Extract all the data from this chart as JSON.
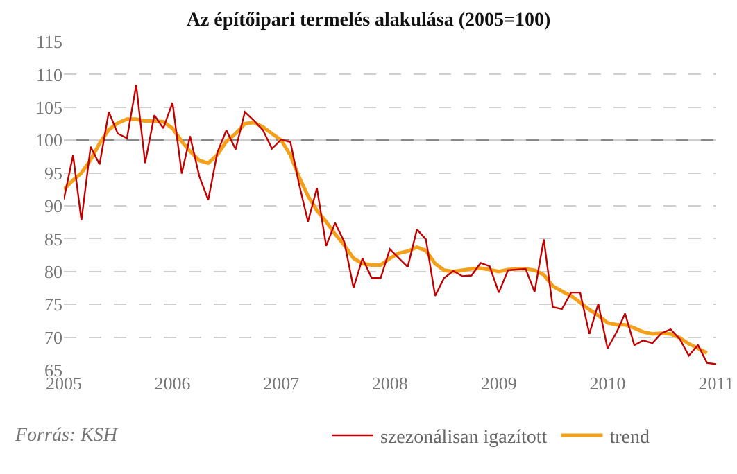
{
  "chart_data": {
    "type": "line",
    "title": "Az építőipari termelés alakulása (2005=100)",
    "x": [
      "2005-01",
      "2005-02",
      "2005-03",
      "2005-04",
      "2005-05",
      "2005-06",
      "2005-07",
      "2005-08",
      "2005-09",
      "2005-10",
      "2005-11",
      "2005-12",
      "2006-01",
      "2006-02",
      "2006-03",
      "2006-04",
      "2006-05",
      "2006-06",
      "2006-07",
      "2006-08",
      "2006-09",
      "2006-10",
      "2006-11",
      "2006-12",
      "2007-01",
      "2007-02",
      "2007-03",
      "2007-04",
      "2007-05",
      "2007-06",
      "2007-07",
      "2007-08",
      "2007-09",
      "2007-10",
      "2007-11",
      "2007-12",
      "2008-01",
      "2008-02",
      "2008-03",
      "2008-04",
      "2008-05",
      "2008-06",
      "2008-07",
      "2008-08",
      "2008-09",
      "2008-10",
      "2008-11",
      "2008-12",
      "2009-01",
      "2009-02",
      "2009-03",
      "2009-04",
      "2009-05",
      "2009-06",
      "2009-07",
      "2009-08",
      "2009-09",
      "2009-10",
      "2009-11",
      "2009-12",
      "2010-01",
      "2010-02",
      "2010-03",
      "2010-04",
      "2010-05",
      "2010-06",
      "2010-07",
      "2010-08",
      "2010-09",
      "2010-10",
      "2010-11",
      "2010-12",
      "2011-01"
    ],
    "series": [
      {
        "name": "trend",
        "color": "#f5a01a",
        "values": [
          92.5,
          93.9,
          95,
          97,
          99.5,
          101.6,
          102.6,
          103.2,
          103.2,
          102.9,
          102.9,
          102.8,
          101.8,
          99.8,
          98.3,
          96.9,
          96.5,
          97.8,
          99.8,
          101,
          102.5,
          102.7,
          102,
          101,
          100,
          97.7,
          94.5,
          91.5,
          89.3,
          87.6,
          85.7,
          84,
          82,
          81.2,
          81,
          81,
          82,
          82.8,
          83.1,
          83.7,
          83.2,
          81.2,
          80.2,
          80,
          80.2,
          80.4,
          80.5,
          80.3,
          80,
          80.3,
          80.4,
          80.4,
          80.2,
          79.5,
          77.8,
          77,
          76.3,
          75.3,
          74.2,
          73.3,
          72.2,
          71.9,
          71.9,
          71.4,
          70.8,
          70.5,
          70.6,
          70.5,
          69.9,
          69,
          68.3,
          67.6,
          null
        ]
      },
      {
        "name": "szezonálisan igazított",
        "color": "#c00000",
        "values": [
          91,
          97.7,
          87.8,
          99,
          96.3,
          104.3,
          101,
          100.3,
          108.4,
          96.5,
          103.8,
          101.8,
          105.7,
          94.9,
          100.6,
          94.5,
          90.9,
          98.2,
          101.5,
          98.6,
          104.3,
          103,
          101.5,
          98.7,
          100.1,
          99.7,
          93.5,
          87.6,
          92.7,
          83.9,
          87.4,
          84.5,
          77.5,
          82,
          79,
          79,
          83.4,
          82,
          80.7,
          86.4,
          84.9,
          76.3,
          79,
          80.1,
          79.3,
          79.4,
          81.3,
          80.8,
          76.8,
          80.2,
          80.3,
          80.4,
          76.9,
          84.9,
          74.6,
          74.3,
          76.8,
          76.8,
          70.5,
          75.1,
          68.3,
          70.8,
          73.6,
          68.8,
          69.5,
          69.1,
          70.6,
          71.2,
          69.7,
          67.2,
          68.8,
          66.1,
          65.9
        ]
      }
    ],
    "xlim": [
      "2005-01",
      "2011-01"
    ],
    "xticks": [
      {
        "value": "2005-01",
        "label": "2005"
      },
      {
        "value": "2006-01",
        "label": "2006"
      },
      {
        "value": "2007-01",
        "label": "2007"
      },
      {
        "value": "2008-01",
        "label": "2008"
      },
      {
        "value": "2009-01",
        "label": "2009"
      },
      {
        "value": "2010-01",
        "label": "2010"
      },
      {
        "value": "2011-01",
        "label": "2011"
      }
    ],
    "ylim": [
      65,
      115
    ],
    "yticks": [
      65,
      70,
      75,
      80,
      85,
      90,
      95,
      100,
      105,
      110,
      115
    ],
    "ref_lines": [
      {
        "axis": "y",
        "value": 100,
        "color": "#888888"
      }
    ],
    "grid": "y",
    "legend": "bottom",
    "marker": "none",
    "line_style": "solid",
    "annotations": [
      "Forrás: KSH"
    ]
  }
}
